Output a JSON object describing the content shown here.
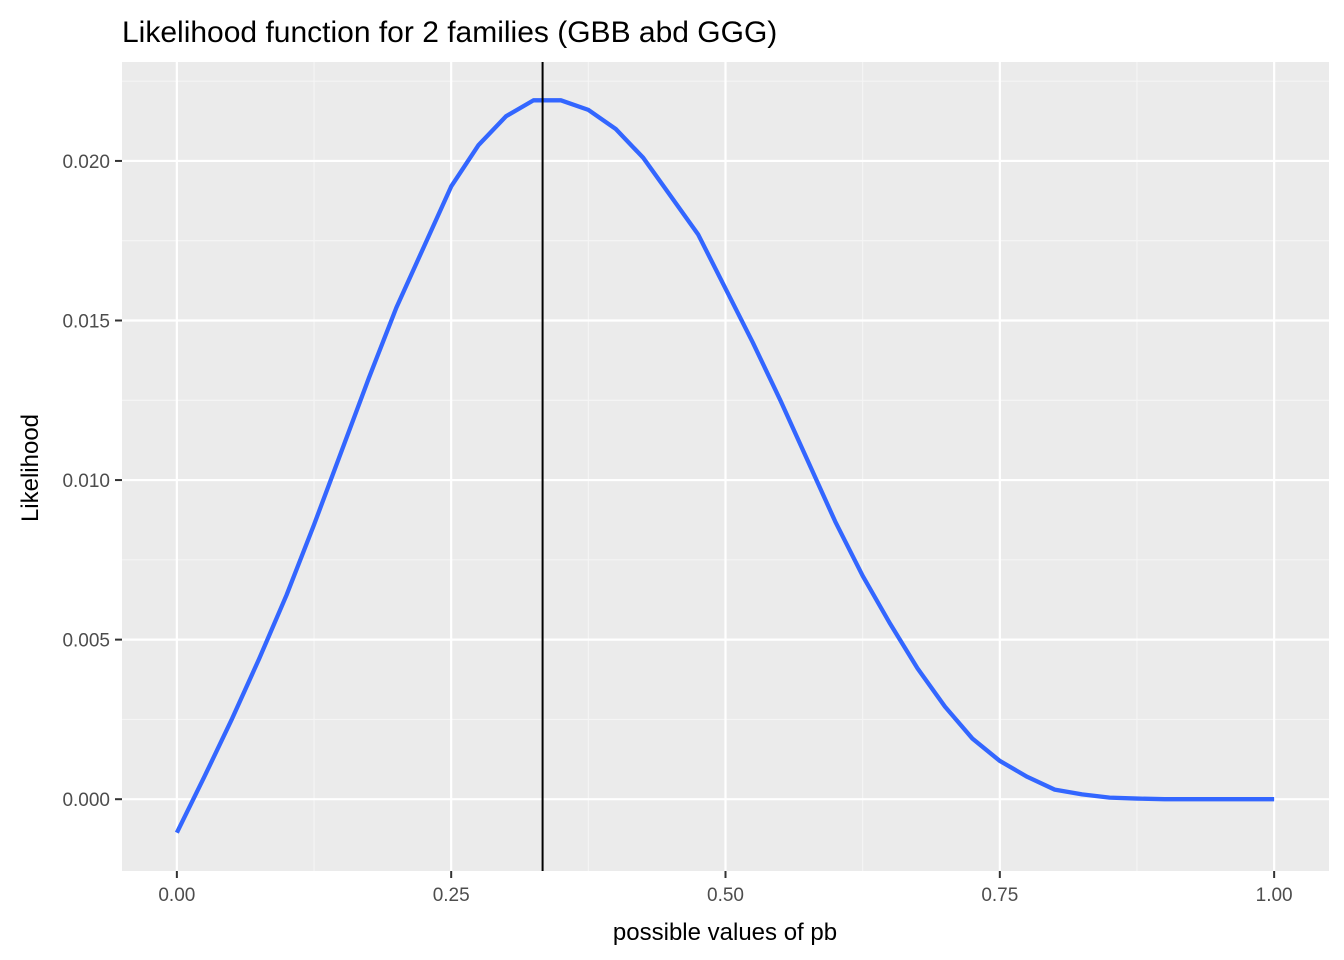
{
  "chart_data": {
    "type": "line",
    "title": "Likelihood function for 2 families (GBB abd GGG)",
    "xlabel": "possible values of pb",
    "ylabel": "Likelihood",
    "xlim": [
      -0.05,
      1.05
    ],
    "ylim": [
      -0.00225,
      0.0231
    ],
    "x_ticks": [
      0.0,
      0.25,
      0.5,
      0.75,
      1.0
    ],
    "x_tick_labels": [
      "0.00",
      "0.25",
      "0.50",
      "0.75",
      "1.00"
    ],
    "y_ticks": [
      0.0,
      0.005,
      0.01,
      0.015,
      0.02
    ],
    "y_tick_labels": [
      "0.000",
      "0.005",
      "0.010",
      "0.015",
      "0.020"
    ],
    "grid": true,
    "legend": "none",
    "series": [
      {
        "color": "#3366ff",
        "x": [
          0.0,
          0.025,
          0.05,
          0.075,
          0.1,
          0.125,
          0.15,
          0.175,
          0.2,
          0.225,
          0.25,
          0.275,
          0.3,
          0.325,
          0.35,
          0.375,
          0.4,
          0.425,
          0.45,
          0.475,
          0.5,
          0.525,
          0.55,
          0.575,
          0.6,
          0.625,
          0.65,
          0.675,
          0.7,
          0.725,
          0.75,
          0.775,
          0.8,
          0.825,
          0.85,
          0.875,
          0.9,
          0.925,
          0.95,
          0.975,
          1.0
        ],
        "y": [
          -0.00105,
          0.0007,
          0.0025,
          0.0044,
          0.0064,
          0.0086,
          0.0109,
          0.0132,
          0.0154,
          0.0173,
          0.0192,
          0.0205,
          0.0214,
          0.0219,
          0.0219,
          0.0216,
          0.021,
          0.0201,
          0.0189,
          0.0177,
          0.016,
          0.0143,
          0.0125,
          0.0106,
          0.0087,
          0.007,
          0.0055,
          0.0041,
          0.0029,
          0.0019,
          0.0012,
          0.0007,
          0.0003,
          0.00015,
          5e-05,
          2e-05,
          0.0,
          0.0,
          0.0,
          0.0,
          0.0
        ]
      }
    ],
    "vline": {
      "x": 0.3333,
      "color": "#000000"
    },
    "colors": {
      "panel_background": "#ebebeb",
      "grid_major": "#ffffff",
      "grid_minor": "#f5f5f5",
      "line": "#3366ff",
      "vline": "#000000"
    }
  }
}
